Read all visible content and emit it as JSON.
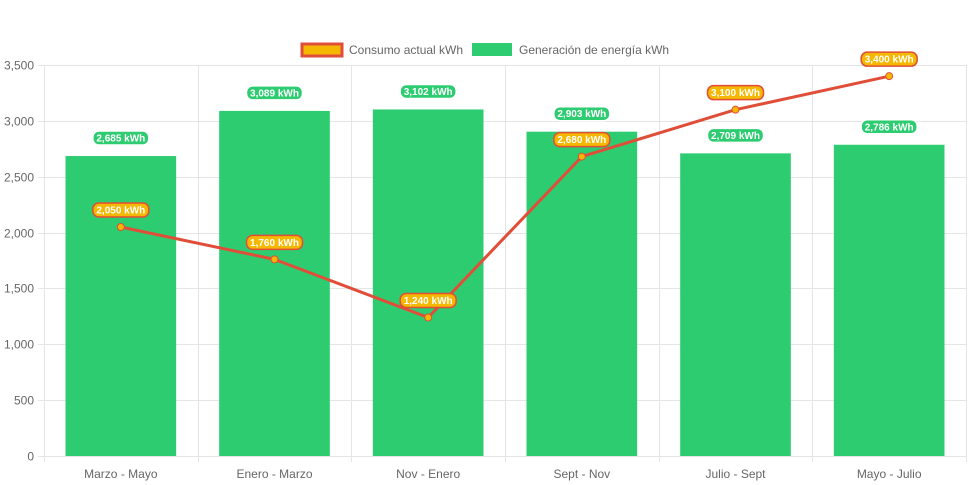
{
  "chart_data": {
    "type": "bar",
    "categories": [
      "Marzo - Mayo",
      "Enero - Marzo",
      "Nov - Enero",
      "Sept - Nov",
      "Julio - Sept",
      "Mayo - Julio"
    ],
    "ylim": [
      0,
      3500
    ],
    "yticks": [
      "0",
      "500",
      "1,000",
      "1,500",
      "2,000",
      "2,500",
      "3,000",
      "3,500"
    ],
    "ytick_values": [
      0,
      500,
      1000,
      1500,
      2000,
      2500,
      3000,
      3500
    ],
    "grid": true,
    "legend_position": "top",
    "series": [
      {
        "name": "Consumo actual kWh",
        "kind": "line",
        "color": "#e04e39",
        "point_color": "#f5b800",
        "values": [
          2050,
          1760,
          1240,
          2680,
          3100,
          3400
        ],
        "labels": [
          "2,050 kWh",
          "1,760 kWh",
          "1,240 kWh",
          "2,680 kWh",
          "3,100 kWh",
          "3,400 kWh"
        ]
      },
      {
        "name": "Generación de energía kWh",
        "kind": "bar",
        "color": "#2ecc71",
        "values": [
          2685,
          3089,
          3102,
          2903,
          2709,
          2786
        ],
        "labels": [
          "2,685 kWh",
          "3,089 kWh",
          "3,102 kWh",
          "2,903 kWh",
          "2,709 kWh",
          "2,786 kWh"
        ]
      }
    ]
  }
}
